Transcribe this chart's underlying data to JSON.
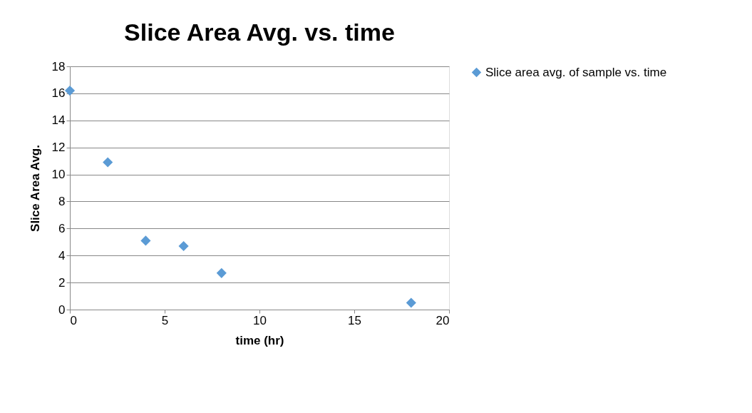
{
  "chart_data": {
    "type": "scatter",
    "title": "Slice Area Avg. vs. time",
    "xlabel": "time (hr)",
    "ylabel": "Slice Area Avg.",
    "x": [
      0,
      2,
      4,
      6,
      8,
      18
    ],
    "series": [
      {
        "name": "Slice area avg. of sample vs. time",
        "color": "#5b9bd5",
        "values": [
          16.2,
          10.9,
          5.1,
          4.7,
          2.7,
          0.5
        ]
      }
    ],
    "xlim": [
      0,
      20
    ],
    "xticks": [
      0,
      5,
      10,
      15,
      20
    ],
    "ylim": [
      0,
      18
    ],
    "yticks": [
      0,
      2,
      4,
      6,
      8,
      10,
      12,
      14,
      16,
      18
    ],
    "grid": "y",
    "legend": "right",
    "marker": "diamond"
  }
}
